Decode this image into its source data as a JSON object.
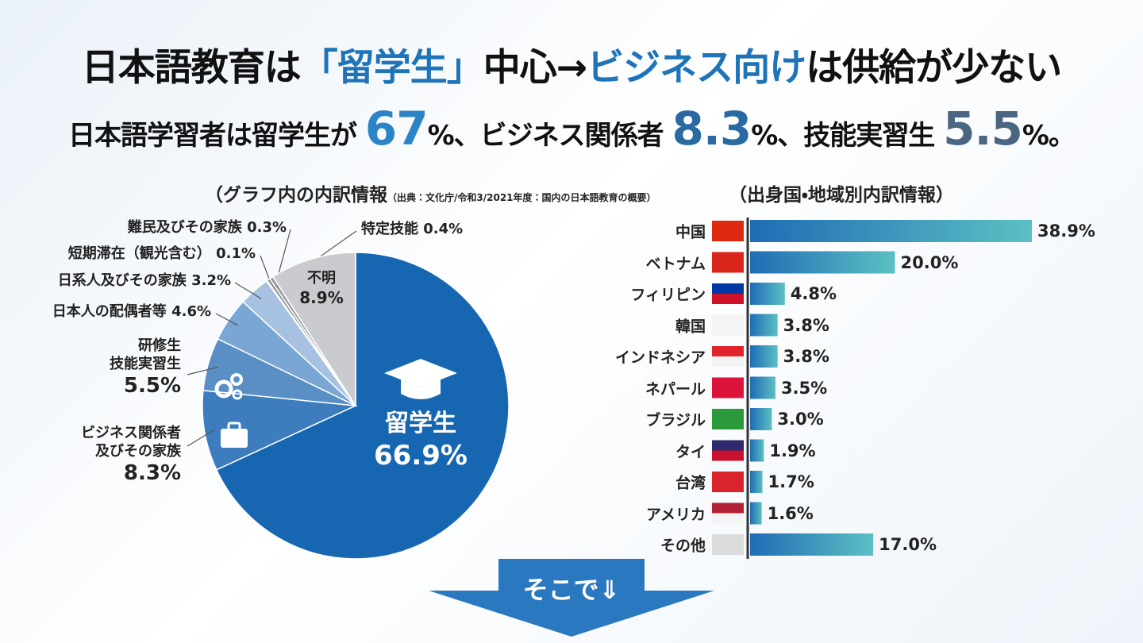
{
  "header": {
    "title_parts": [
      "日本語教育は",
      "「留学生」",
      "中心→",
      "ビジネス向け",
      "は供給が少ない"
    ],
    "subtitle_parts": [
      "日本語学習者は留学生が",
      "67",
      "%、ビジネス関係者",
      "8.3",
      "%、技能実習生",
      "5.5",
      "%。"
    ]
  },
  "chart_data": [
    {
      "type": "pie",
      "title": "（グラフ内の内訳情報",
      "source": "（出典：文化庁/令和3/2021年度：国内の日本語教育の概要）",
      "categories": [
        "留学生",
        "ビジネス関係者\n及びその家族",
        "研修生\n技能実習生",
        "日本人の配偶者等",
        "日系人及びその家族",
        "短期滞在（観光含む）",
        "難民及びその家族",
        "特定技能",
        "不明"
      ],
      "values": [
        66.9,
        8.3,
        5.5,
        4.6,
        3.2,
        0.1,
        0.3,
        0.4,
        8.9
      ],
      "value_labels": [
        "66.9%",
        "8.3%",
        "5.5%",
        "4.6%",
        "3.2%",
        "0.1%",
        "0.3%",
        "0.4%",
        "8.9%"
      ],
      "colors": [
        "#1766b1",
        "#3d7dbd",
        "#5a8fc6",
        "#7aa6d4",
        "#a6c2e0",
        "#8a8f96",
        "#7d8288",
        "#9a9ea4",
        "#c9cbce"
      ]
    },
    {
      "type": "bar",
      "orientation": "horizontal",
      "title": "（出身国・地域別内訳情報）",
      "categories": [
        "中国",
        "ベトナム",
        "フィリピン",
        "韓国",
        "インドネシア",
        "ネパール",
        "ブラジル",
        "タイ",
        "台湾",
        "アメリカ",
        "その他"
      ],
      "values": [
        38.9,
        20.0,
        4.8,
        3.8,
        3.8,
        3.5,
        3.0,
        1.9,
        1.7,
        1.6,
        17.0
      ],
      "value_labels": [
        "38.9%",
        "20.0%",
        "4.8%",
        "3.8%",
        "3.8%",
        "3.5%",
        "3.0%",
        "1.9%",
        "1.7%",
        "1.6%",
        "17.0%"
      ],
      "gradient": [
        "#1f6cb4",
        "#5cc0c4"
      ]
    }
  ],
  "footer": {
    "button": "そこで⇓"
  }
}
